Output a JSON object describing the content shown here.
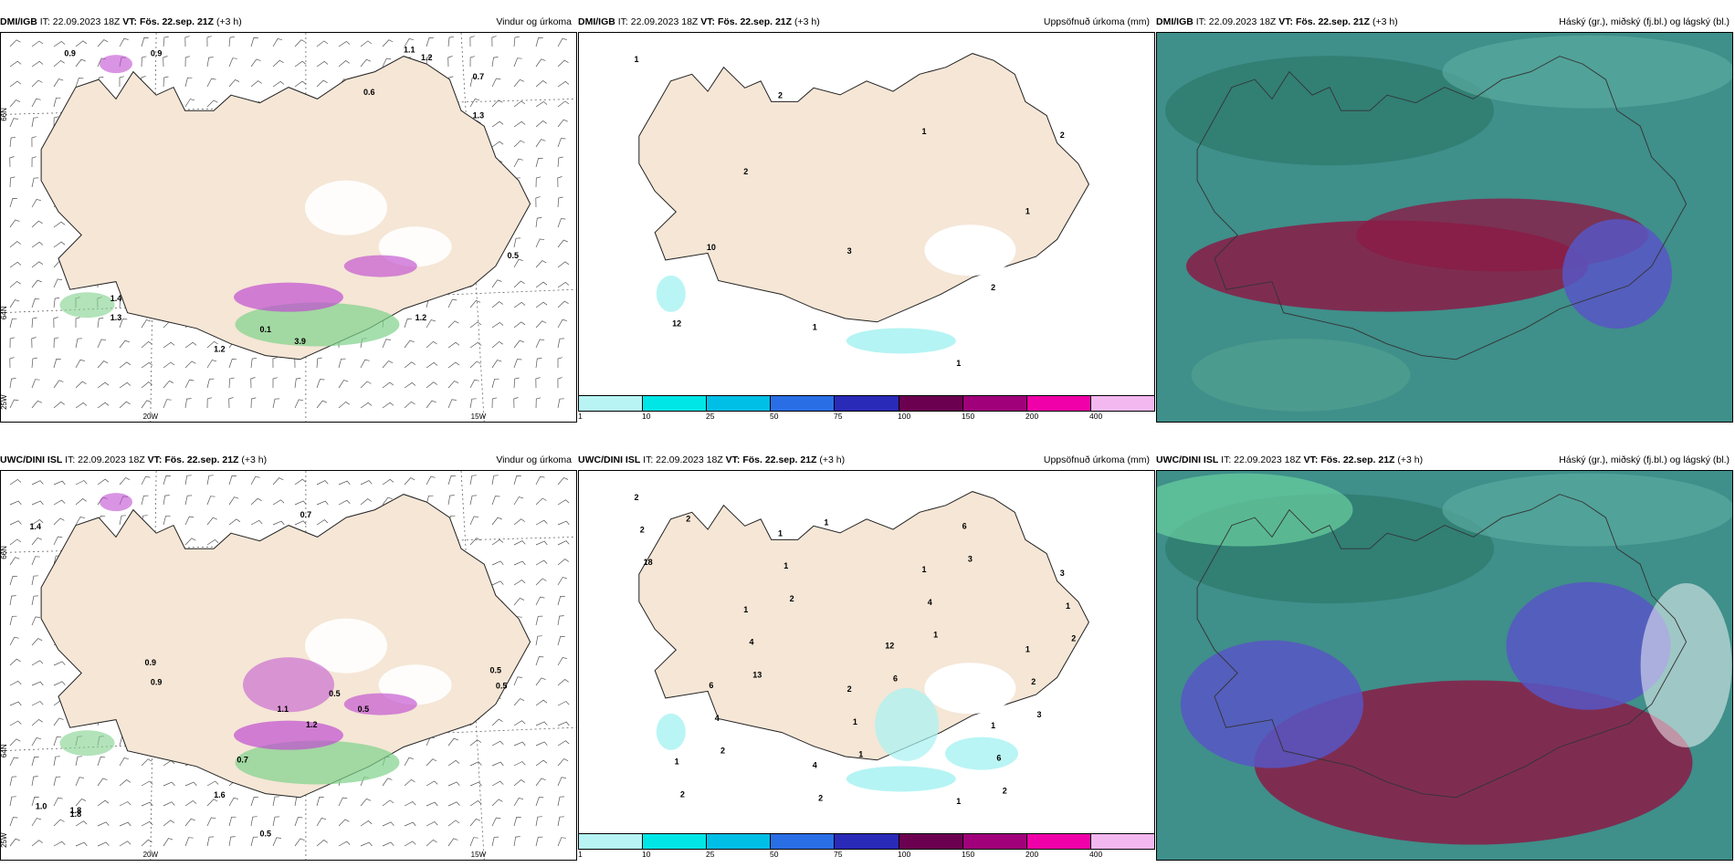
{
  "colors": {
    "land": "#f5e6d6",
    "snow": "#ffffff",
    "precip_green": "#7fd18a",
    "precip_magenta": "#c04fd0",
    "precip_cyan": "#a8f2f2",
    "cloud_high": "#8a1c46",
    "cloud_mid": "#2f7a6e",
    "cloud_low": "#5856c4"
  },
  "panels": [
    {
      "model": "DMI/IGB",
      "it": "IT: 22.09.2023 18Z",
      "vt_label": "VT:",
      "vt": "Fös. 22.sep. 21Z",
      "lead": "(+3 h)",
      "title": "Vindur og úrkoma"
    },
    {
      "model": "DMI/IGB",
      "it": "IT: 22.09.2023 18Z",
      "vt_label": "VT:",
      "vt": "Fös. 22.sep. 21Z",
      "lead": "(+3 h)",
      "title": "Uppsöfnuð úrkoma (mm)"
    },
    {
      "model": "DMI/IGB",
      "it": "IT: 22.09.2023 18Z",
      "vt_label": "VT:",
      "vt": "Fös. 22.sep. 21Z",
      "lead": "(+3 h)",
      "title": "Háský (gr.), miðský (fj.bl.) og lágský (bl.)"
    },
    {
      "model": "UWC/DINI ISL",
      "it": "IT: 22.09.2023 18Z",
      "vt_label": "VT:",
      "vt": "Fös. 22.sep. 21Z",
      "lead": "(+3 h)",
      "title": "Vindur og úrkoma"
    },
    {
      "model": "UWC/DINI ISL",
      "it": "IT: 22.09.2023 18Z",
      "vt_label": "VT:",
      "vt": "Fös. 22.sep. 21Z",
      "lead": "(+3 h)",
      "title": "Uppsöfnuð úrkoma (mm)"
    },
    {
      "model": "UWC/DINI ISL",
      "it": "IT: 22.09.2023 18Z",
      "vt_label": "VT:",
      "vt": "Fös. 22.sep. 21Z",
      "lead": "(+3 h)",
      "title": "Háský (gr.), miðský (fj.bl.) og lágský (bl.)"
    }
  ],
  "colorbar": {
    "ticks": [
      "1",
      "10",
      "25",
      "50",
      "75",
      "100",
      "150",
      "200",
      "400"
    ],
    "colors": [
      "#b8f4f4",
      "#00e6e6",
      "#00bfe6",
      "#2a6ee6",
      "#2a2ab8",
      "#6b0050",
      "#a0007a",
      "#f000a8",
      "#f4b8f0"
    ]
  },
  "axis_labels": {
    "lon_20w": "20W",
    "lon_15w": "15W",
    "lon_25w": "25W",
    "lat_66n": "66N",
    "lat_64n": "64N"
  },
  "labels_top_wind": [
    "0.9",
    "0.9",
    "1.1",
    "1.2",
    "0.7",
    "0.6",
    "1.3",
    "0.5",
    "1.4",
    "1.3",
    "1.2",
    "1.2",
    "0.1",
    "3.9"
  ],
  "labels_bot_wind": [
    "1.4",
    "1.8",
    "0.7",
    "1.1",
    "1.2",
    "0.9",
    "0.9",
    "0.5",
    "0.5",
    "0.5",
    "0.5",
    "0.7",
    "1.6",
    "1.0",
    "1.8",
    "0.5"
  ],
  "labels_top_accum": [
    "1",
    "3",
    "2",
    "1",
    "1",
    "2",
    "2",
    "2",
    "1",
    "10",
    "1",
    "12"
  ],
  "labels_bot_accum": [
    "2",
    "2",
    "3",
    "4",
    "1",
    "1",
    "1",
    "1",
    "1",
    "6",
    "1",
    "1",
    "12",
    "2",
    "1",
    "1",
    "2",
    "2",
    "1",
    "6",
    "4",
    "6",
    "4",
    "4",
    "2",
    "6",
    "18",
    "1",
    "2",
    "1",
    "3",
    "2",
    "2",
    "13",
    "3",
    "2",
    "1",
    "2"
  ]
}
